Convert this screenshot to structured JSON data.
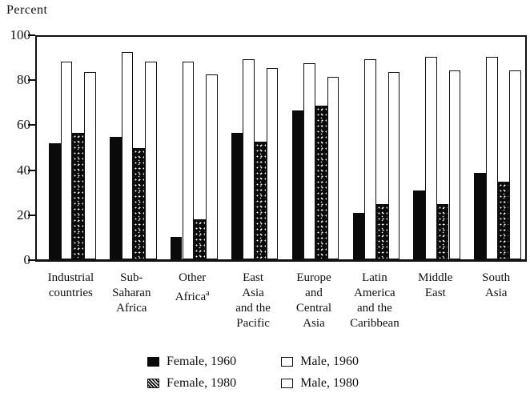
{
  "figure": {
    "axis_unit_label": "Percent"
  },
  "chart_data": {
    "type": "bar",
    "title": "",
    "xlabel": "",
    "ylabel": "Percent",
    "ylim": [
      0,
      100
    ],
    "grid": false,
    "yticks": [
      "100",
      "80",
      "60",
      "40",
      "20",
      "0"
    ],
    "ytick_values": [
      100,
      80,
      60,
      40,
      20,
      0
    ],
    "categories": [
      "Industrial countries",
      "Sub-Saharan Africa",
      "Other Africa",
      "East Asia and the Pacific",
      "Europe and Central Asia",
      "Latin America and the Caribbean",
      "Middle East",
      "South Asia"
    ],
    "category_label_lines": [
      {
        "lines": [
          "Industrial",
          "countries"
        ],
        "sup": ""
      },
      {
        "lines": [
          "Sub-",
          "Saharan",
          "Africa"
        ],
        "sup": ""
      },
      {
        "lines": [
          "Other",
          "Africa"
        ],
        "sup": "a"
      },
      {
        "lines": [
          "East",
          "Asia",
          "and the",
          "Pacific"
        ],
        "sup": ""
      },
      {
        "lines": [
          "Europe",
          "and",
          "Central",
          "Asia"
        ],
        "sup": ""
      },
      {
        "lines": [
          "Latin",
          "America",
          "and the",
          "Caribbean"
        ],
        "sup": ""
      },
      {
        "lines": [
          "Middle",
          "East"
        ],
        "sup": ""
      },
      {
        "lines": [
          "South",
          "Asia"
        ],
        "sup": ""
      }
    ],
    "series": [
      {
        "name": "Female, 1960",
        "style": "solid",
        "values": [
          52,
          55,
          10,
          57,
          67,
          21,
          31,
          39
        ]
      },
      {
        "name": "Male, 1960",
        "style": "outline",
        "values": [
          89,
          93,
          89,
          90,
          88,
          90,
          91,
          91
        ]
      },
      {
        "name": "Female, 1980",
        "style": "stipple",
        "values": [
          57,
          50,
          18,
          53,
          69,
          25,
          25,
          35
        ]
      },
      {
        "name": "Male, 1980",
        "style": "outline",
        "values": [
          84,
          89,
          83,
          86,
          82,
          84,
          85,
          85
        ]
      }
    ],
    "legend": {
      "position": "bottom",
      "items": [
        {
          "label": "Female, 1960",
          "style": "solid"
        },
        {
          "label": "Female, 1980",
          "style": "hatch"
        },
        {
          "label": "Male, 1960",
          "style": "outline"
        },
        {
          "label": "Male, 1980",
          "style": "outline"
        }
      ]
    },
    "colors": {
      "ink": "#111111",
      "paper": "#ffffff"
    }
  }
}
